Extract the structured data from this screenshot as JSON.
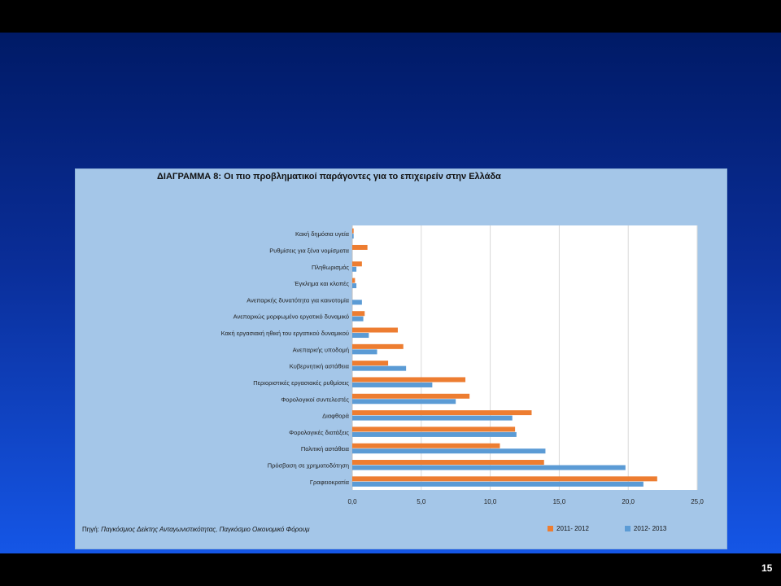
{
  "slide": {
    "page_number": "15"
  },
  "chart_data": {
    "type": "bar",
    "orientation": "horizontal",
    "title": "ΔΙΑΓΡΑΜΜΑ 8: Οι πιο προβληματικοί παράγοντες για το επιχειρείν στην Ελλάδα",
    "source_label": "Πηγή:",
    "source_text": "Παγκόσμιος Δείκτης Ανταγωνιστικότητας, Παγκόσμιο Οικονομικό Φόρουμ",
    "categories": [
      "Κακή δημόσια υγεία",
      "Ρυθμίσεις για ξένα νομίσματα",
      "Πληθωρισμός",
      "Έγκλημα και κλοπές",
      "Ανεπαρκής δυνατότητα για καινοτομία",
      "Ανεπαρκώς μορφωμένο εργατικό δυναμικό",
      "Κακή εργασιακή ηθική του εργατικού δυναμικού",
      "Ανεπαρκής υποδομή",
      "Κυβερνητική αστάθεια",
      "Περιοριστικές εργασιακές ρυθμίσεις",
      "Φορολογικοί συντελεστές",
      "Διαφθορά",
      "Φορολογικές διατάξεις",
      "Πολιτική αστάθεια",
      "Πρόσβαση σε χρηματοδότηση",
      "Γραφειοκρατία"
    ],
    "series": [
      {
        "name": "2011- 2012",
        "color": "#ed7d31",
        "values": [
          0.1,
          1.1,
          0.7,
          0.2,
          0.0,
          0.9,
          3.3,
          3.7,
          2.6,
          8.2,
          8.5,
          13.0,
          11.8,
          10.7,
          13.9,
          22.1
        ]
      },
      {
        "name": "2012- 2013",
        "color": "#5b9bd5",
        "values": [
          0.1,
          0.0,
          0.3,
          0.3,
          0.7,
          0.8,
          1.2,
          1.8,
          3.9,
          5.8,
          7.5,
          11.6,
          11.9,
          14.0,
          19.8,
          21.1
        ]
      }
    ],
    "xlim": [
      0,
      25
    ],
    "x_ticks": [
      "0,0",
      "5,0",
      "10,0",
      "15,0",
      "20,0",
      "25,0"
    ],
    "grid": true,
    "legend_position": "bottom-right"
  }
}
